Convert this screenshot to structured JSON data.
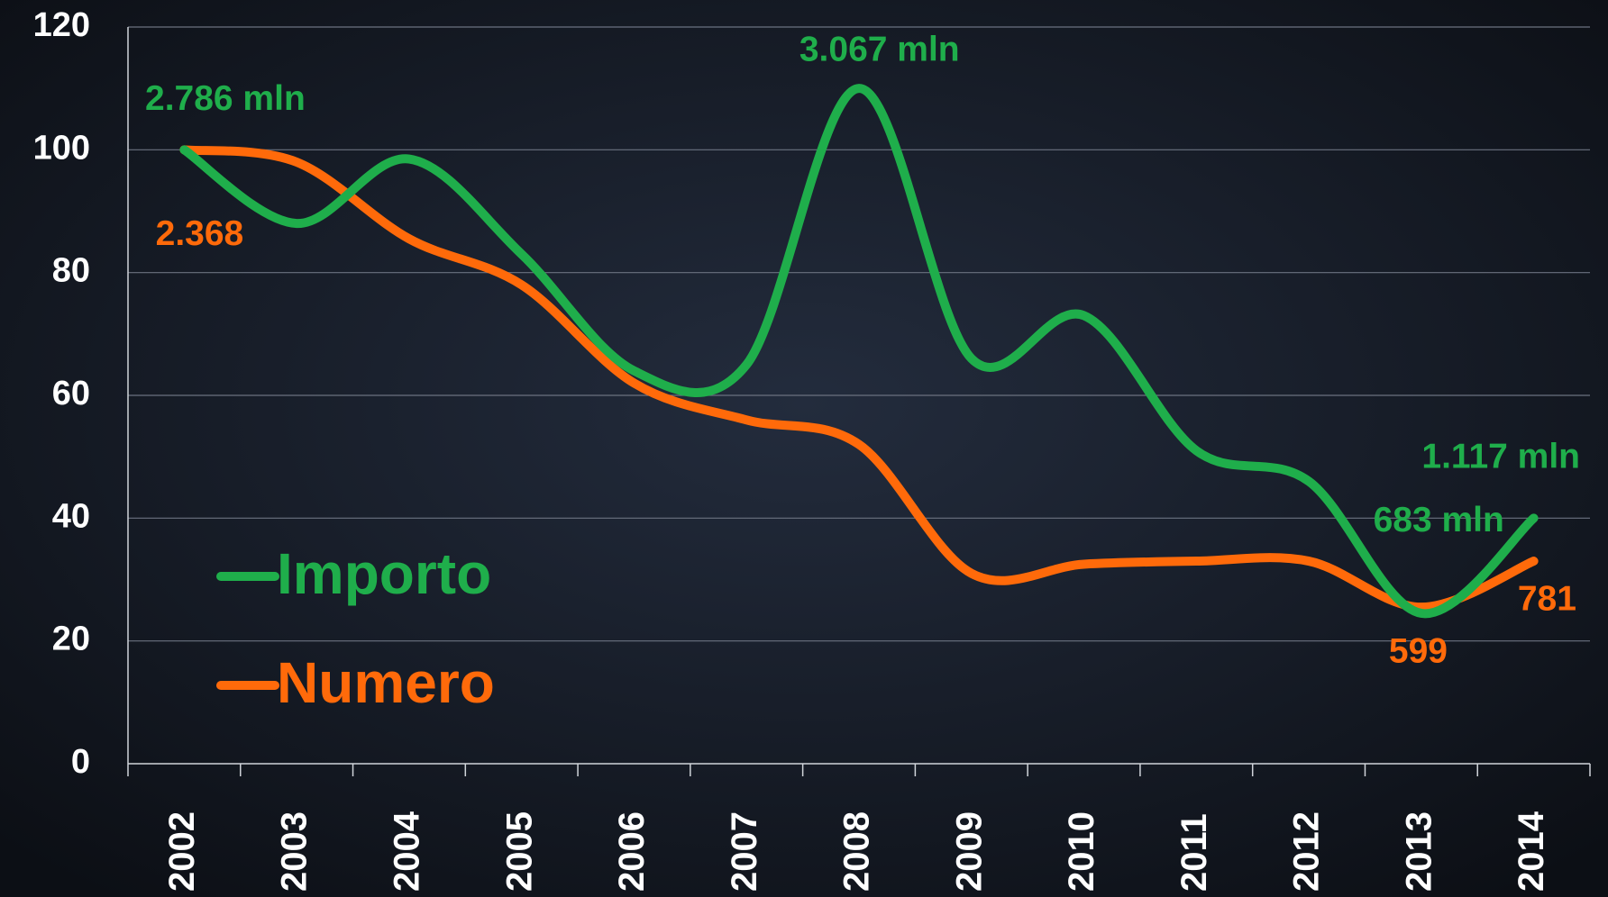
{
  "chart_data": {
    "type": "line",
    "categories": [
      "2002",
      "2003",
      "2004",
      "2005",
      "2006",
      "2007",
      "2008",
      "2009",
      "2010",
      "2011",
      "2012",
      "2013",
      "2014"
    ],
    "series": [
      {
        "name": "Importo",
        "color": "#1fae4b",
        "values": [
          100,
          88,
          98.5,
          83,
          64,
          65,
          110,
          66,
          73,
          51,
          46,
          24.5,
          40
        ],
        "point_labels": [
          "2.786 mln",
          null,
          null,
          null,
          null,
          null,
          "3.067 mln",
          null,
          null,
          null,
          null,
          "683 mln",
          "1.117 mln"
        ]
      },
      {
        "name": "Numero",
        "color": "#ff6a0a",
        "values": [
          100,
          98,
          85.5,
          78,
          62,
          56,
          52,
          31,
          32.5,
          33,
          33,
          25.5,
          33
        ],
        "point_labels": [
          "2.368",
          null,
          null,
          null,
          null,
          null,
          null,
          null,
          null,
          null,
          null,
          "599",
          "781"
        ]
      }
    ],
    "ylim": [
      0,
      120
    ],
    "yticks": [
      0,
      20,
      40,
      60,
      80,
      100,
      120
    ],
    "grid": true,
    "smooth": true,
    "legend": "left"
  }
}
